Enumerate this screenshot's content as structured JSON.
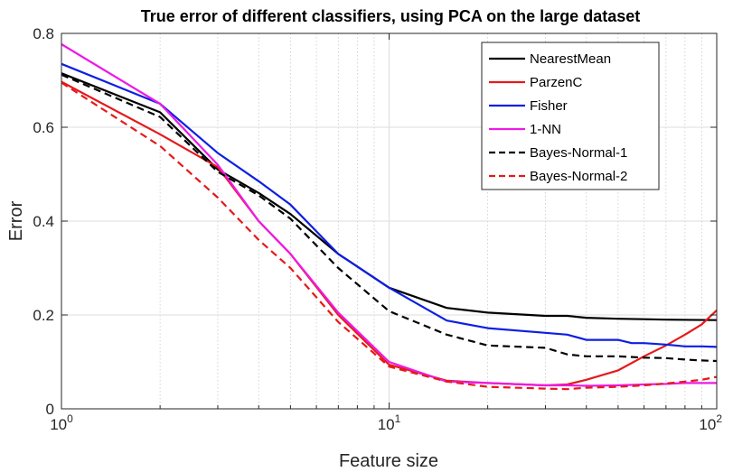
{
  "chart_data": {
    "type": "line",
    "title": "True error of different classifiers, using PCA on the large dataset",
    "xlabel": "Feature size",
    "ylabel": "Error",
    "xscale": "log",
    "xlim": [
      1,
      100
    ],
    "ylim": [
      0,
      0.8
    ],
    "x_ticks": [
      {
        "base": "10",
        "exp": "0",
        "value": 1
      },
      {
        "base": "10",
        "exp": "1",
        "value": 10
      },
      {
        "base": "10",
        "exp": "2",
        "value": 100
      }
    ],
    "y_ticks": [
      {
        "label": "0",
        "value": 0
      },
      {
        "label": "0.2",
        "value": 0.2
      },
      {
        "label": "0.4",
        "value": 0.4
      },
      {
        "label": "0.6",
        "value": 0.6
      },
      {
        "label": "0.8",
        "value": 0.8
      }
    ],
    "grid": true,
    "legend_position": "top-right",
    "series": [
      {
        "name": "NearestMean",
        "color": "#000000",
        "dash": "solid",
        "points": [
          [
            1,
            0.715
          ],
          [
            2,
            0.632
          ],
          [
            3,
            0.51
          ],
          [
            4,
            0.46
          ],
          [
            5,
            0.415
          ],
          [
            7,
            0.33
          ],
          [
            10,
            0.258
          ],
          [
            15,
            0.215
          ],
          [
            20,
            0.205
          ],
          [
            30,
            0.198
          ],
          [
            35,
            0.198
          ],
          [
            40,
            0.194
          ],
          [
            50,
            0.192
          ],
          [
            60,
            0.191
          ],
          [
            70,
            0.19
          ],
          [
            100,
            0.189
          ]
        ]
      },
      {
        "name": "ParzenC",
        "color": "#e6191a",
        "dash": "solid",
        "points": [
          [
            1,
            0.697
          ],
          [
            2,
            0.585
          ],
          [
            3,
            0.515
          ],
          [
            4,
            0.4
          ],
          [
            5,
            0.33
          ],
          [
            7,
            0.2
          ],
          [
            10,
            0.094
          ],
          [
            15,
            0.06
          ],
          [
            20,
            0.055
          ],
          [
            30,
            0.05
          ],
          [
            35,
            0.052
          ],
          [
            40,
            0.062
          ],
          [
            50,
            0.082
          ],
          [
            60,
            0.112
          ],
          [
            70,
            0.135
          ],
          [
            80,
            0.158
          ],
          [
            90,
            0.18
          ],
          [
            100,
            0.21
          ]
        ]
      },
      {
        "name": "Fisher",
        "color": "#0d1fe3",
        "dash": "solid",
        "points": [
          [
            1,
            0.735
          ],
          [
            2,
            0.65
          ],
          [
            3,
            0.545
          ],
          [
            4,
            0.485
          ],
          [
            5,
            0.435
          ],
          [
            7,
            0.33
          ],
          [
            10,
            0.258
          ],
          [
            15,
            0.188
          ],
          [
            20,
            0.172
          ],
          [
            30,
            0.162
          ],
          [
            35,
            0.158
          ],
          [
            40,
            0.147
          ],
          [
            50,
            0.147
          ],
          [
            55,
            0.14
          ],
          [
            60,
            0.14
          ],
          [
            70,
            0.137
          ],
          [
            80,
            0.133
          ],
          [
            90,
            0.133
          ],
          [
            100,
            0.132
          ]
        ]
      },
      {
        "name": "1-NN",
        "color": "#ed1ae6",
        "dash": "solid",
        "points": [
          [
            1,
            0.777
          ],
          [
            2,
            0.65
          ],
          [
            3,
            0.52
          ],
          [
            4,
            0.4
          ],
          [
            5,
            0.33
          ],
          [
            7,
            0.205
          ],
          [
            10,
            0.1
          ],
          [
            15,
            0.058
          ],
          [
            20,
            0.055
          ],
          [
            30,
            0.05
          ],
          [
            35,
            0.05
          ],
          [
            40,
            0.049
          ],
          [
            50,
            0.05
          ],
          [
            60,
            0.052
          ],
          [
            70,
            0.053
          ],
          [
            80,
            0.055
          ],
          [
            100,
            0.055
          ]
        ]
      },
      {
        "name": "Bayes-Normal-1",
        "color": "#000000",
        "dash": "dashed",
        "points": [
          [
            1,
            0.712
          ],
          [
            2,
            0.622
          ],
          [
            3,
            0.505
          ],
          [
            4,
            0.455
          ],
          [
            5,
            0.405
          ],
          [
            7,
            0.3
          ],
          [
            10,
            0.208
          ],
          [
            15,
            0.158
          ],
          [
            20,
            0.135
          ],
          [
            30,
            0.13
          ],
          [
            35,
            0.116
          ],
          [
            40,
            0.112
          ],
          [
            50,
            0.112
          ],
          [
            60,
            0.109
          ],
          [
            70,
            0.108
          ],
          [
            80,
            0.105
          ],
          [
            90,
            0.103
          ],
          [
            100,
            0.102
          ]
        ]
      },
      {
        "name": "Bayes-Normal-2",
        "color": "#e6191a",
        "dash": "dashed",
        "points": [
          [
            1,
            0.695
          ],
          [
            2,
            0.56
          ],
          [
            3,
            0.45
          ],
          [
            4,
            0.36
          ],
          [
            5,
            0.3
          ],
          [
            7,
            0.185
          ],
          [
            10,
            0.09
          ],
          [
            15,
            0.058
          ],
          [
            20,
            0.047
          ],
          [
            30,
            0.043
          ],
          [
            35,
            0.042
          ],
          [
            40,
            0.045
          ],
          [
            50,
            0.047
          ],
          [
            60,
            0.05
          ],
          [
            70,
            0.054
          ],
          [
            80,
            0.058
          ],
          [
            90,
            0.062
          ],
          [
            100,
            0.068
          ]
        ]
      }
    ]
  }
}
